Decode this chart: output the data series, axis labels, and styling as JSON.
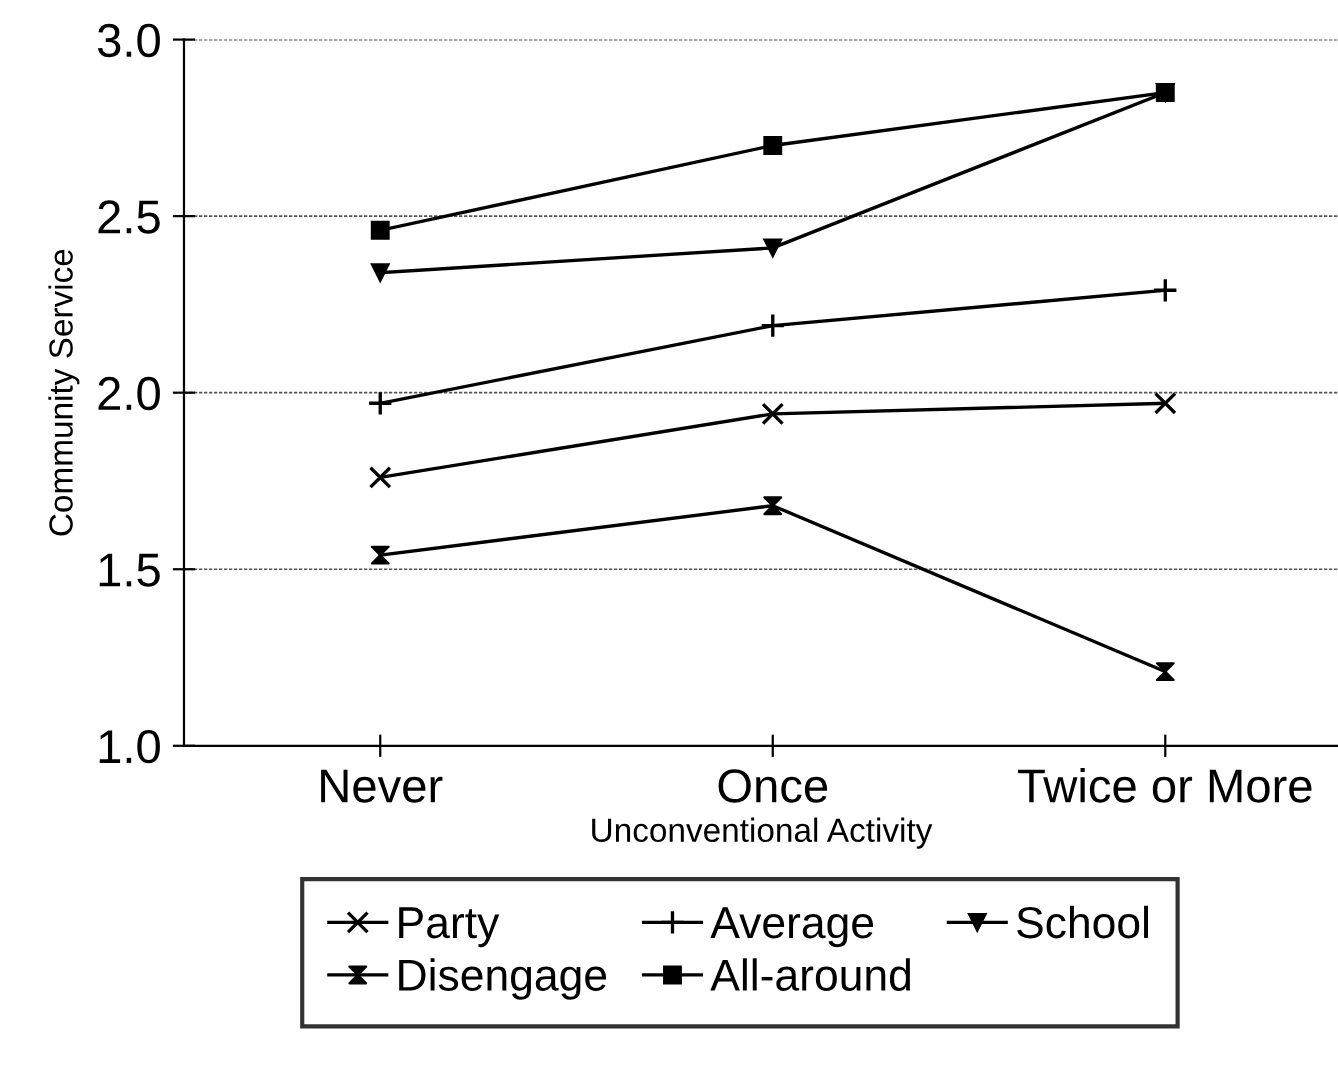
{
  "chart_data": {
    "type": "line",
    "xlabel": "Unconventional Activity",
    "ylabel": "Community Service",
    "categories": [
      "Never",
      "Once",
      "Twice or More"
    ],
    "series": [
      {
        "name": "Party",
        "color": "#000000",
        "marker": "x",
        "values": [
          1.76,
          1.94,
          1.97
        ]
      },
      {
        "name": "Average",
        "color": "#000000",
        "marker": "plus",
        "values": [
          1.97,
          2.19,
          2.29
        ]
      },
      {
        "name": "School",
        "color": "#000000",
        "marker": "triangle",
        "values": [
          2.34,
          2.41,
          2.85
        ]
      },
      {
        "name": "Disengage",
        "color": "#000000",
        "marker": "diamond",
        "values": [
          1.54,
          1.68,
          1.21
        ]
      },
      {
        "name": "All-around",
        "color": "#000000",
        "marker": "square",
        "values": [
          2.46,
          2.7,
          2.85
        ]
      }
    ],
    "ylim": [
      1.0,
      3.0
    ],
    "yticks": [
      {
        "value": 1.0,
        "label": "1.0"
      },
      {
        "value": 1.5,
        "label": "1.5"
      },
      {
        "value": 2.0,
        "label": "2.0"
      },
      {
        "value": 2.5,
        "label": "2.5"
      },
      {
        "value": 3.0,
        "label": "3.0"
      }
    ],
    "grid": "y",
    "legend": "bottom",
    "line_style": "solid"
  }
}
